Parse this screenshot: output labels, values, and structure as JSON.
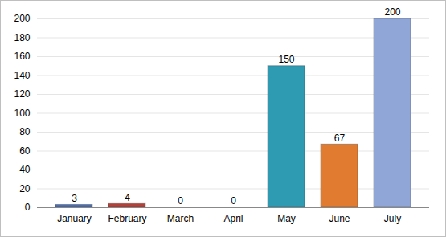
{
  "chart_data": {
    "type": "bar",
    "categories": [
      "January",
      "February",
      "March",
      "April",
      "May",
      "June",
      "July"
    ],
    "values": [
      3,
      4,
      0,
      0,
      150,
      67,
      200
    ],
    "colors": [
      "#4a6fb5",
      "#b5403a",
      "#7f9c3c",
      "#5f4b8b",
      "#2f9bb3",
      "#e07b30",
      "#8fa6d6"
    ],
    "ylim": [
      0,
      200
    ],
    "yticks": [
      0,
      20,
      40,
      60,
      80,
      100,
      120,
      140,
      160,
      180,
      200
    ],
    "grid": true,
    "data_labels": true
  }
}
